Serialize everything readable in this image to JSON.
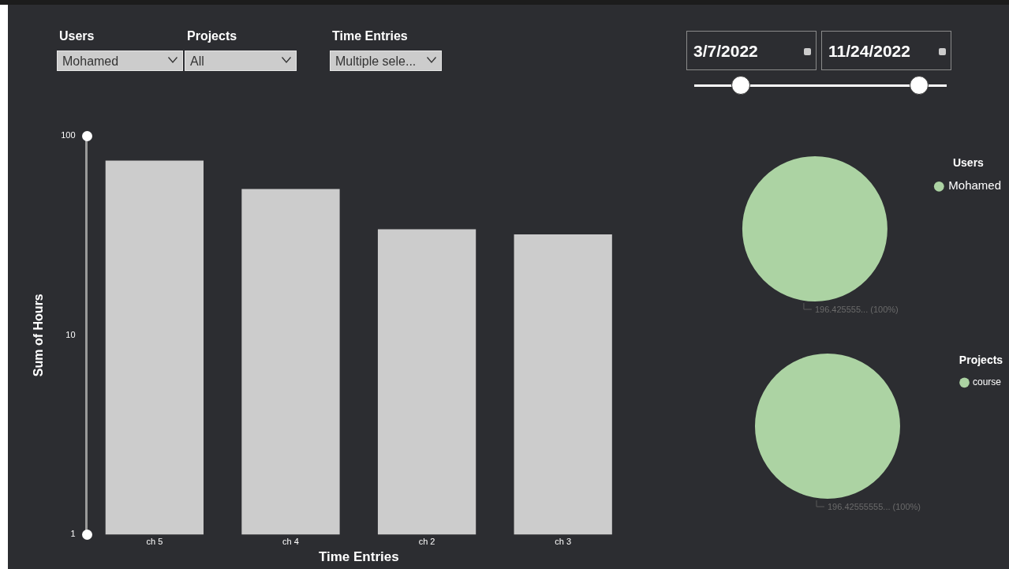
{
  "chart_data": [
    {
      "type": "other",
      "annotations": [
        "Users",
        "Mohamed",
        "Projects",
        "All",
        "Time Entries",
        "Multiple sele...",
        "3/7/2022",
        "11/24/2022"
      ]
    },
    {
      "type": "bar",
      "xlabel": "Time Entries",
      "ylabel": "Sum of Hours",
      "categories": [
        "ch 5",
        "ch 4",
        "ch 2",
        "ch 3"
      ],
      "values": [
        75,
        54,
        34,
        32
      ],
      "color": "#cccccc",
      "log": true,
      "ylim": [
        1,
        100
      ],
      "yticks": [
        1,
        10,
        100
      ],
      "grid": false
    },
    {
      "type": "pie",
      "legend_title": "Users",
      "categories": [
        "Mohamed"
      ],
      "values": [
        196.425555
      ],
      "colors": [
        "#acd3a3"
      ],
      "legend": "top right",
      "value_labels": [
        "196.425555... (100%)"
      ]
    },
    {
      "type": "pie",
      "legend_title": "Projects",
      "categories": [
        "course"
      ],
      "values": [
        196.42555555
      ],
      "colors": [
        "#acd3a3"
      ],
      "legend": "top right",
      "value_labels": [
        "196.42555555... (100%)"
      ]
    }
  ]
}
